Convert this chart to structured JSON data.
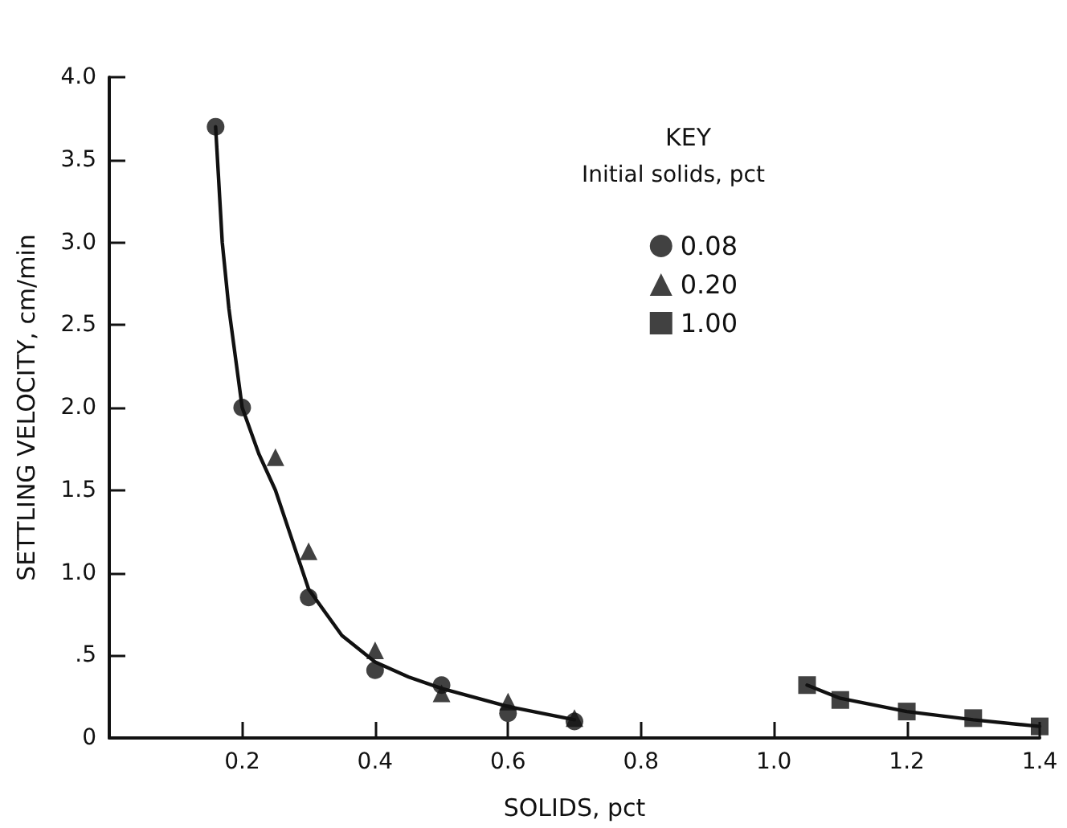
{
  "chart_data": {
    "type": "scatter",
    "xlabel": "SOLIDS, pct",
    "ylabel": "SETTLING VELOCITY, cm/min",
    "legend_title": "KEY",
    "annotations": [
      "Initial solids, pct"
    ],
    "xlim": [
      0,
      1.4
    ],
    "xticks": [
      0.2,
      0.4,
      0.6,
      0.8,
      {
        "value": 1.0,
        "label": "1.0"
      },
      1.2,
      1.4
    ],
    "ylim": [
      0,
      4
    ],
    "yticks": [
      0,
      {
        "value": 0.5,
        "label": ".5"
      },
      {
        "value": 1.0,
        "label": "1.0"
      },
      1.5,
      {
        "value": 2.0,
        "label": "2.0"
      },
      2.5,
      {
        "value": 3.0,
        "label": "3.0"
      },
      3.5,
      {
        "value": 4.0,
        "label": "4.0"
      }
    ],
    "grid": false,
    "legend": "top right",
    "series": [
      {
        "name": "0.08",
        "color": "#111111",
        "marker": "circle",
        "x": [
          0.16,
          0.2,
          0.3,
          0.4,
          0.5,
          0.6,
          0.7
        ],
        "values": [
          3.7,
          2.0,
          0.85,
          0.41,
          0.32,
          0.15,
          0.1
        ]
      },
      {
        "name": "0.20",
        "color": "#111111",
        "marker": "triangle",
        "x": [
          0.25,
          0.3,
          0.4,
          0.5,
          0.6,
          0.7
        ],
        "values": [
          1.7,
          1.13,
          0.53,
          0.27,
          0.22,
          0.12
        ]
      },
      {
        "name": "1.00",
        "color": "#111111",
        "marker": "square",
        "x": [
          1.05,
          1.1,
          1.2,
          1.3,
          1.4
        ],
        "values": [
          0.32,
          0.23,
          0.16,
          0.12,
          0.07
        ]
      },
      {
        "type": "line",
        "color": "#111111",
        "marker": "none",
        "line_style": "solid",
        "x": [
          0.16,
          0.17,
          0.18,
          0.2,
          0.225,
          0.25,
          0.3,
          0.35,
          0.4,
          0.45,
          0.5,
          0.6,
          0.7
        ],
        "values": [
          3.7,
          3.0,
          2.6,
          2.0,
          1.72,
          1.5,
          0.9,
          0.62,
          0.46,
          0.37,
          0.3,
          0.19,
          0.11
        ]
      },
      {
        "type": "line",
        "color": "#111111",
        "marker": "none",
        "line_style": "solid",
        "x": [
          1.05,
          1.1,
          1.2,
          1.3,
          1.4
        ],
        "values": [
          0.32,
          0.24,
          0.16,
          0.11,
          0.07
        ]
      }
    ]
  }
}
